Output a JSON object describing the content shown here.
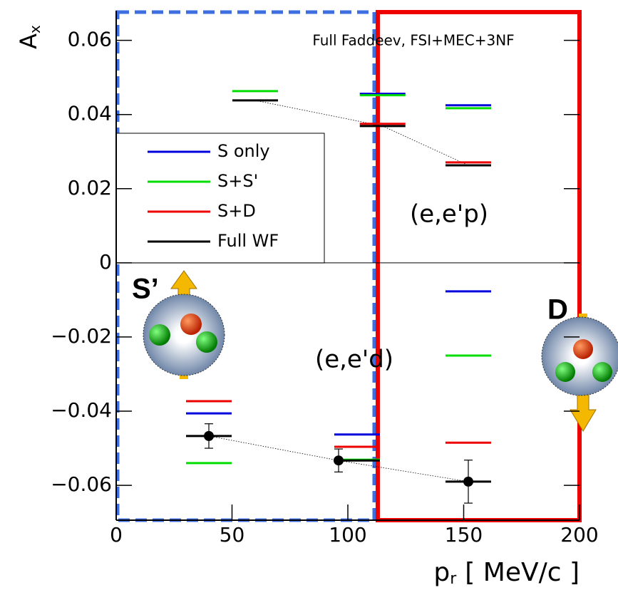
{
  "chart_data": {
    "type": "segments",
    "annotation": "Full Faddeev, FSI+MEC+3NF",
    "ep_label": "(e,e'p)",
    "ed_label": "(e,e'd)",
    "s_prime_label": "S’",
    "d_label": "D",
    "x_label": {
      "symbol": "p",
      "subscript": "r",
      "unit": "[ MeV/c ]"
    },
    "y_label": {
      "symbol": "A",
      "subscript": "x"
    },
    "xlim": [
      0,
      200
    ],
    "ylim": [
      -0.0694,
      0.068
    ],
    "xticks": [
      0,
      50,
      100,
      150,
      200
    ],
    "yticks": [
      0.06,
      0.04,
      0.02,
      0,
      {
        "value": -0.02,
        "label": "−0.02"
      },
      {
        "value": -0.04,
        "label": "−0.04"
      },
      {
        "value": -0.06,
        "label": "−0.06"
      }
    ],
    "ep_x": [
      60,
      115,
      152
    ],
    "ed_x": [
      40,
      104,
      152
    ],
    "series": [
      {
        "name": "S only",
        "color": "#0000dd",
        "ep": [
          null,
          0.0456,
          0.0425
        ],
        "ed": [
          -0.0406,
          -0.0463,
          -0.0077
        ]
      },
      {
        "name": "S+S'",
        "color": "#00dd00",
        "ep": [
          0.0463,
          0.0452,
          0.0417
        ],
        "ed": [
          -0.054,
          -0.0531,
          -0.025
        ]
      },
      {
        "name": "S+D",
        "color": "#ee0000",
        "ep": [
          null,
          0.0375,
          0.0271
        ],
        "ed": [
          -0.0373,
          -0.0496,
          -0.0485
        ]
      },
      {
        "name": "Full WF",
        "color": "#000000",
        "ep": [
          0.0438,
          0.0369,
          0.0263
        ],
        "ed": [
          -0.0467,
          -0.0533,
          -0.059
        ]
      }
    ],
    "points": {
      "x": [
        40,
        96,
        152
      ],
      "y": [
        -0.0467,
        -0.0533,
        -0.059
      ],
      "err": [
        0.0033,
        0.0031,
        0.0058
      ]
    }
  }
}
